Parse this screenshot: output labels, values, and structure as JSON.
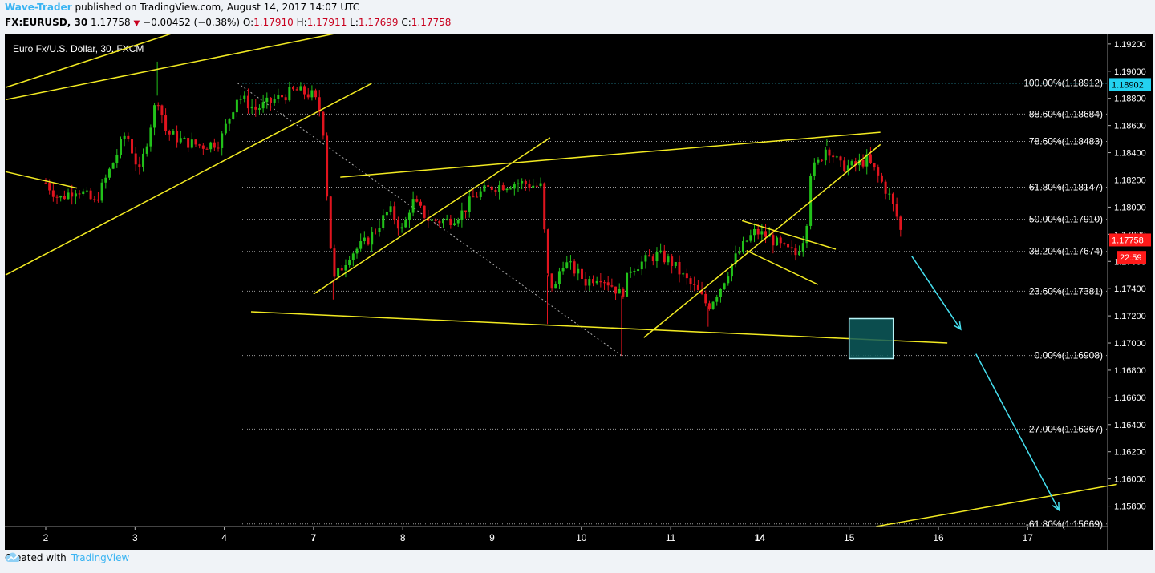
{
  "header": {
    "author": "Wave-Trader",
    "published": "published on TradingView.com, August 14, 2017 14:07 UTC",
    "symbol": "FX:EURUSD, 30",
    "last": "1.17758",
    "change": "−0.00452 (−0.38%)",
    "o_label": "O:",
    "o_value": "1.17910",
    "h_label": "H:",
    "h_value": "1.17911",
    "l_label": "L:",
    "l_value": "1.17699",
    "c_label": "C:",
    "c_value": "1.17758"
  },
  "footer": {
    "created_with": "Created with",
    "brand": "TradingView"
  },
  "colors": {
    "background": "#000000",
    "up": "#22c11a",
    "down": "#e0141e",
    "trend": "#f2ea22",
    "fib": "#9a9a9a",
    "cyan": "#46e0f0",
    "label_bg": "#ff1a1a",
    "hi_label_bg": "#23d2f0"
  },
  "chart_data": {
    "type": "candlestick",
    "title": "Euro Fx/U.S. Dollar, 30, FXCM",
    "x_ticks": [
      "2",
      "3",
      "4",
      "7",
      "8",
      "9",
      "10",
      "11",
      "14",
      "15",
      "16",
      "17"
    ],
    "y_ticks": [
      "1.19200",
      "1.19000",
      "1.18800",
      "1.18600",
      "1.18400",
      "1.18200",
      "1.18000",
      "1.17800",
      "1.17600",
      "1.17400",
      "1.17200",
      "1.17000",
      "1.16800",
      "1.16600",
      "1.16400",
      "1.16200",
      "1.16000",
      "1.15800"
    ],
    "ylim": [
      1.1565,
      1.1927
    ],
    "fib_levels": [
      {
        "label": "100.00%(1.18912)",
        "value": 1.18912
      },
      {
        "label": "88.60%(1.18684)",
        "value": 1.18684
      },
      {
        "label": "78.60%(1.18483)",
        "value": 1.18483
      },
      {
        "label": "61.80%(1.18147)",
        "value": 1.18147
      },
      {
        "label": "50.00%(1.17910)",
        "value": 1.1791
      },
      {
        "label": "38.20%(1.17674)",
        "value": 1.17674
      },
      {
        "label": "23.60%(1.17381)",
        "value": 1.17381
      },
      {
        "label": "0.00%(1.16908)",
        "value": 1.16908
      },
      {
        "label": "-27.00%(1.16367)",
        "value": 1.16367
      },
      {
        "label": "-61.80%(1.15669)",
        "value": 1.15669
      }
    ],
    "price_labels": [
      {
        "text": "1.18902",
        "value": 1.18902,
        "style": "high"
      },
      {
        "text": "1.17758",
        "value": 1.17758,
        "style": "last"
      },
      {
        "text": "22:59",
        "value": 1.1763,
        "style": "timer"
      }
    ],
    "anchors": [
      {
        "day": 0.0,
        "price": 1.1818
      },
      {
        "day": 0.15,
        "price": 1.1806
      },
      {
        "day": 0.35,
        "price": 1.1814
      },
      {
        "day": 0.55,
        "price": 1.1803
      },
      {
        "day": 0.75,
        "price": 1.1832
      },
      {
        "day": 0.9,
        "price": 1.1855
      },
      {
        "day": 1.05,
        "price": 1.1825
      },
      {
        "day": 1.25,
        "price": 1.1882
      },
      {
        "day": 1.35,
        "price": 1.1855
      },
      {
        "day": 1.55,
        "price": 1.1848
      },
      {
        "day": 1.75,
        "price": 1.1845
      },
      {
        "day": 1.95,
        "price": 1.1848
      },
      {
        "day": 2.15,
        "price": 1.1882
      },
      {
        "day": 2.35,
        "price": 1.1872
      },
      {
        "day": 2.6,
        "price": 1.188
      },
      {
        "day": 2.8,
        "price": 1.1886
      },
      {
        "day": 3.0,
        "price": 1.1882
      },
      {
        "day": 3.1,
        "price": 1.1865
      },
      {
        "day": 3.15,
        "price": 1.181
      },
      {
        "day": 3.22,
        "price": 1.1745
      },
      {
        "day": 3.4,
        "price": 1.1765
      },
      {
        "day": 3.6,
        "price": 1.1775
      },
      {
        "day": 3.85,
        "price": 1.1798
      },
      {
        "day": 4.0,
        "price": 1.1782
      },
      {
        "day": 4.1,
        "price": 1.1805
      },
      {
        "day": 4.3,
        "price": 1.179
      },
      {
        "day": 4.5,
        "price": 1.179
      },
      {
        "day": 4.65,
        "price": 1.1795
      },
      {
        "day": 4.8,
        "price": 1.1808
      },
      {
        "day": 5.0,
        "price": 1.1815
      },
      {
        "day": 5.3,
        "price": 1.1818
      },
      {
        "day": 5.55,
        "price": 1.1815
      },
      {
        "day": 5.62,
        "price": 1.175
      },
      {
        "day": 5.7,
        "price": 1.1738
      },
      {
        "day": 5.78,
        "price": 1.176
      },
      {
        "day": 5.9,
        "price": 1.1755
      },
      {
        "day": 6.05,
        "price": 1.1745
      },
      {
        "day": 6.2,
        "price": 1.175
      },
      {
        "day": 6.35,
        "price": 1.1742
      },
      {
        "day": 6.45,
        "price": 1.1735
      },
      {
        "day": 6.55,
        "price": 1.1755
      },
      {
        "day": 6.7,
        "price": 1.176
      },
      {
        "day": 6.85,
        "price": 1.1765
      },
      {
        "day": 7.0,
        "price": 1.176
      },
      {
        "day": 7.15,
        "price": 1.1748
      },
      {
        "day": 7.3,
        "price": 1.1738
      },
      {
        "day": 7.42,
        "price": 1.1727
      },
      {
        "day": 7.55,
        "price": 1.174
      },
      {
        "day": 7.7,
        "price": 1.176
      },
      {
        "day": 7.85,
        "price": 1.1775
      },
      {
        "day": 7.95,
        "price": 1.1782
      },
      {
        "day": 8.1,
        "price": 1.1778
      },
      {
        "day": 8.25,
        "price": 1.177
      },
      {
        "day": 8.4,
        "price": 1.1765
      },
      {
        "day": 8.52,
        "price": 1.1782
      },
      {
        "day": 8.55,
        "price": 1.1825
      },
      {
        "day": 8.65,
        "price": 1.1832
      },
      {
        "day": 8.75,
        "price": 1.1845
      },
      {
        "day": 8.9,
        "price": 1.183
      },
      {
        "day": 9.05,
        "price": 1.183
      },
      {
        "day": 9.2,
        "price": 1.1835
      },
      {
        "day": 9.35,
        "price": 1.182
      },
      {
        "day": 9.45,
        "price": 1.1808
      },
      {
        "day": 9.55,
        "price": 1.179
      },
      {
        "day": 9.6,
        "price": 1.17758
      }
    ],
    "wick_extremes": [
      {
        "day": 1.25,
        "price": 1.1907
      },
      {
        "day": 3.22,
        "price": 1.1732
      },
      {
        "day": 5.62,
        "price": 1.1714
      },
      {
        "day": 6.45,
        "price": 1.16905
      },
      {
        "day": 7.42,
        "price": 1.1712
      },
      {
        "day": 8.75,
        "price": 1.185
      }
    ]
  }
}
